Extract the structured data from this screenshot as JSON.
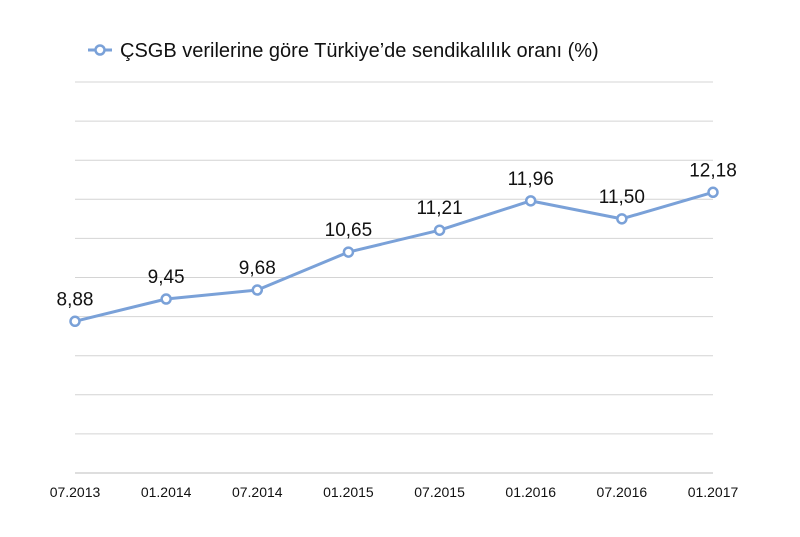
{
  "chart_data": {
    "type": "line",
    "legend": {
      "label": "ÇSGB verilerine göre Türkiye’de sendikalılık oranı (%)",
      "position": "top"
    },
    "categories": [
      "07.2013",
      "01.2014",
      "07.2014",
      "01.2015",
      "07.2015",
      "01.2016",
      "07.2016",
      "01.2017"
    ],
    "series": [
      {
        "name": "ÇSGB verilerine göre Türkiye’de sendikalılık oranı (%)",
        "values": [
          8.88,
          9.45,
          9.68,
          10.65,
          11.21,
          11.96,
          11.5,
          12.18
        ],
        "labels": [
          "8,88",
          "9,45",
          "9,68",
          "10,65",
          "11,21",
          "11,96",
          "11,50",
          "12,18"
        ],
        "color": "#7aa1d8"
      }
    ],
    "ylim": [
      5.0,
      15.0
    ],
    "grid": true,
    "xlabel": "",
    "ylabel": ""
  }
}
